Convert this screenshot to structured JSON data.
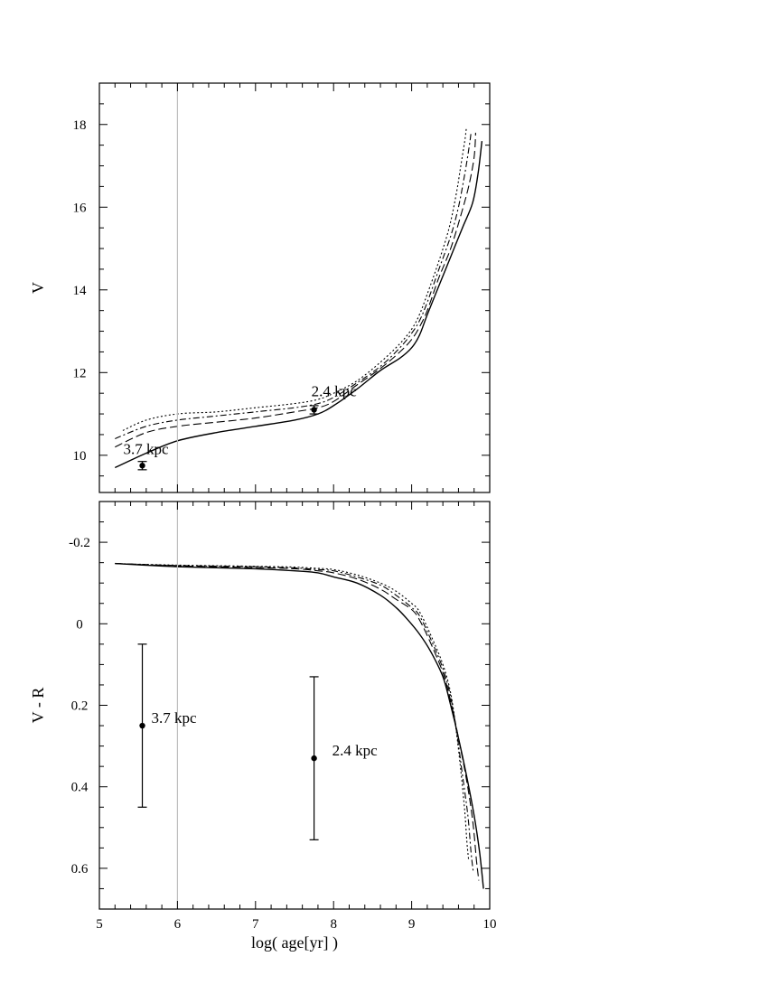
{
  "chart_data": [
    {
      "type": "line",
      "panel": "top",
      "ylabel": "V",
      "xlim": [
        5,
        10
      ],
      "ylim": [
        19,
        9.1
      ],
      "y_inverted": true,
      "yticks": [
        10,
        12,
        14,
        16,
        18
      ],
      "reference_line_x": 6,
      "series": [
        {
          "style": "solid",
          "points": [
            [
              5.2,
              9.7
            ],
            [
              5.6,
              10.05
            ],
            [
              6.0,
              10.35
            ],
            [
              6.5,
              10.55
            ],
            [
              7.0,
              10.7
            ],
            [
              7.5,
              10.85
            ],
            [
              7.8,
              11.0
            ],
            [
              8.0,
              11.2
            ],
            [
              8.3,
              11.6
            ],
            [
              8.6,
              12.05
            ],
            [
              8.85,
              12.35
            ],
            [
              9.0,
              12.6
            ],
            [
              9.1,
              12.9
            ],
            [
              9.2,
              13.4
            ],
            [
              9.35,
              14.1
            ],
            [
              9.5,
              14.8
            ],
            [
              9.65,
              15.5
            ],
            [
              9.78,
              16.1
            ],
            [
              9.85,
              16.8
            ],
            [
              9.9,
              17.6
            ]
          ]
        },
        {
          "style": "dashed",
          "points": [
            [
              5.2,
              10.2
            ],
            [
              5.6,
              10.55
            ],
            [
              6.0,
              10.7
            ],
            [
              6.5,
              10.8
            ],
            [
              7.0,
              10.9
            ],
            [
              7.5,
              11.05
            ],
            [
              7.8,
              11.15
            ],
            [
              8.0,
              11.3
            ],
            [
              8.3,
              11.7
            ],
            [
              8.6,
              12.1
            ],
            [
              8.85,
              12.5
            ],
            [
              9.0,
              12.8
            ],
            [
              9.1,
              13.1
            ],
            [
              9.2,
              13.5
            ],
            [
              9.35,
              14.3
            ],
            [
              9.5,
              15.0
            ],
            [
              9.63,
              15.8
            ],
            [
              9.73,
              16.5
            ],
            [
              9.8,
              17.2
            ],
            [
              9.82,
              17.8
            ]
          ]
        },
        {
          "style": "dashdot",
          "points": [
            [
              5.2,
              10.4
            ],
            [
              5.6,
              10.7
            ],
            [
              6.0,
              10.85
            ],
            [
              6.5,
              10.95
            ],
            [
              7.0,
              11.05
            ],
            [
              7.5,
              11.15
            ],
            [
              7.8,
              11.25
            ],
            [
              8.0,
              11.4
            ],
            [
              8.3,
              11.75
            ],
            [
              8.6,
              12.15
            ],
            [
              8.85,
              12.6
            ],
            [
              9.0,
              12.95
            ],
            [
              9.1,
              13.25
            ],
            [
              9.2,
              13.7
            ],
            [
              9.35,
              14.5
            ],
            [
              9.5,
              15.3
            ],
            [
              9.6,
              16.0
            ],
            [
              9.68,
              16.8
            ],
            [
              9.74,
              17.5
            ],
            [
              9.76,
              17.8
            ]
          ]
        },
        {
          "style": "dotted",
          "points": [
            [
              5.3,
              10.6
            ],
            [
              5.6,
              10.85
            ],
            [
              6.0,
              11.0
            ],
            [
              6.5,
              11.05
            ],
            [
              7.0,
              11.15
            ],
            [
              7.5,
              11.25
            ],
            [
              7.8,
              11.35
            ],
            [
              8.0,
              11.5
            ],
            [
              8.3,
              11.8
            ],
            [
              8.6,
              12.25
            ],
            [
              8.85,
              12.7
            ],
            [
              9.0,
              13.05
            ],
            [
              9.1,
              13.4
            ],
            [
              9.2,
              13.9
            ],
            [
              9.35,
              14.7
            ],
            [
              9.48,
              15.5
            ],
            [
              9.57,
              16.3
            ],
            [
              9.63,
              17.0
            ],
            [
              9.68,
              17.6
            ],
            [
              9.7,
              17.9
            ]
          ]
        }
      ],
      "points": [
        {
          "label": "3.7 kpc",
          "x": 5.55,
          "y": 9.75,
          "yerr": 0.1
        },
        {
          "label": "2.4 kpc",
          "x": 7.75,
          "y": 11.1,
          "yerr": 0.1
        }
      ]
    },
    {
      "type": "line",
      "panel": "bottom",
      "ylabel": "V - R",
      "xlabel": "log( age[yr] )",
      "xlim": [
        5,
        10
      ],
      "xticks": [
        5,
        6,
        7,
        8,
        9,
        10
      ],
      "ylim": [
        -0.3,
        0.7
      ],
      "y_inverted": true,
      "yticks": [
        -0.2,
        0,
        0.2,
        0.4,
        0.6
      ],
      "ytick_labels": [
        "-0.2",
        "0",
        "0.2",
        "0.4",
        "0.6"
      ],
      "reference_line_x": 6,
      "series": [
        {
          "style": "solid",
          "points": [
            [
              5.2,
              -0.148
            ],
            [
              6.0,
              -0.14
            ],
            [
              7.0,
              -0.135
            ],
            [
              7.5,
              -0.13
            ],
            [
              7.8,
              -0.125
            ],
            [
              8.0,
              -0.115
            ],
            [
              8.3,
              -0.1
            ],
            [
              8.6,
              -0.07
            ],
            [
              8.8,
              -0.04
            ],
            [
              8.95,
              -0.01
            ],
            [
              9.1,
              0.025
            ],
            [
              9.25,
              0.07
            ],
            [
              9.4,
              0.13
            ],
            [
              9.5,
              0.2
            ],
            [
              9.6,
              0.28
            ],
            [
              9.7,
              0.37
            ],
            [
              9.8,
              0.47
            ],
            [
              9.87,
              0.56
            ],
            [
              9.92,
              0.65
            ]
          ]
        },
        {
          "style": "dashed",
          "points": [
            [
              5.2,
              -0.148
            ],
            [
              6.0,
              -0.142
            ],
            [
              7.0,
              -0.138
            ],
            [
              7.5,
              -0.135
            ],
            [
              7.8,
              -0.13
            ],
            [
              8.0,
              -0.125
            ],
            [
              8.3,
              -0.11
            ],
            [
              8.6,
              -0.085
            ],
            [
              8.8,
              -0.06
            ],
            [
              9.0,
              -0.035
            ],
            [
              9.1,
              -0.01
            ],
            [
              9.25,
              0.05
            ],
            [
              9.4,
              0.12
            ],
            [
              9.5,
              0.19
            ],
            [
              9.6,
              0.28
            ],
            [
              9.7,
              0.38
            ],
            [
              9.78,
              0.48
            ],
            [
              9.83,
              0.58
            ],
            [
              9.86,
              0.63
            ]
          ]
        },
        {
          "style": "dashdot",
          "points": [
            [
              5.2,
              -0.148
            ],
            [
              6.0,
              -0.143
            ],
            [
              7.0,
              -0.14
            ],
            [
              7.5,
              -0.137
            ],
            [
              7.8,
              -0.133
            ],
            [
              8.0,
              -0.13
            ],
            [
              8.3,
              -0.115
            ],
            [
              8.6,
              -0.095
            ],
            [
              8.8,
              -0.07
            ],
            [
              9.0,
              -0.04
            ],
            [
              9.1,
              -0.02
            ],
            [
              9.25,
              0.04
            ],
            [
              9.4,
              0.11
            ],
            [
              9.5,
              0.18
            ],
            [
              9.58,
              0.27
            ],
            [
              9.65,
              0.37
            ],
            [
              9.72,
              0.47
            ],
            [
              9.76,
              0.56
            ],
            [
              9.79,
              0.61
            ]
          ]
        },
        {
          "style": "dotted",
          "points": [
            [
              5.3,
              -0.147
            ],
            [
              6.0,
              -0.144
            ],
            [
              7.0,
              -0.141
            ],
            [
              7.5,
              -0.139
            ],
            [
              7.8,
              -0.136
            ],
            [
              8.0,
              -0.133
            ],
            [
              8.3,
              -0.12
            ],
            [
              8.6,
              -0.1
            ],
            [
              8.8,
              -0.08
            ],
            [
              9.0,
              -0.05
            ],
            [
              9.1,
              -0.03
            ],
            [
              9.25,
              0.03
            ],
            [
              9.4,
              0.1
            ],
            [
              9.5,
              0.17
            ],
            [
              9.57,
              0.26
            ],
            [
              9.63,
              0.36
            ],
            [
              9.68,
              0.46
            ],
            [
              9.71,
              0.54
            ],
            [
              9.73,
              0.58
            ]
          ]
        }
      ],
      "points": [
        {
          "label": "3.7 kpc",
          "x": 5.55,
          "y": 0.25,
          "yerr": 0.2
        },
        {
          "label": "2.4 kpc",
          "x": 7.75,
          "y": 0.33,
          "yerr": 0.2
        }
      ]
    }
  ]
}
